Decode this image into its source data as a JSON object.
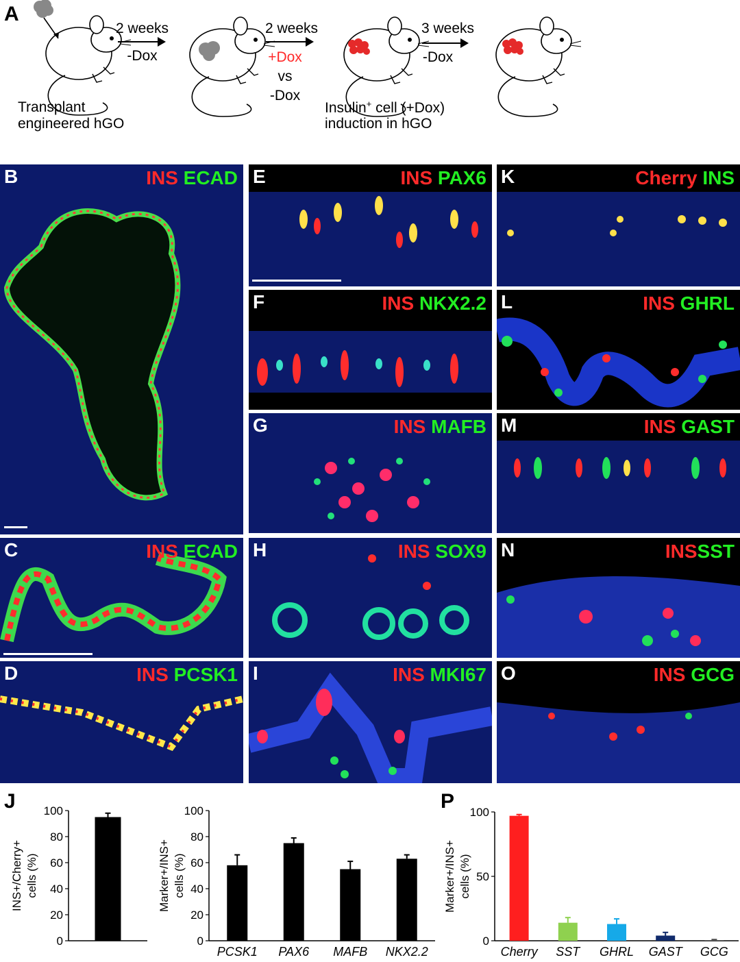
{
  "schematic": {
    "label": "A",
    "step1_time": "2 weeks",
    "step1_cond": "-Dox",
    "step2_time": "2 weeks",
    "step2_cond_plus": "+Dox",
    "step2_vs": "vs",
    "step2_cond_minus": "-Dox",
    "step3_time": "3 weeks",
    "step3_cond": "-Dox",
    "caption_left_1": "Transplant",
    "caption_left_2": "engineered hGO",
    "caption_mid_1": "Insulin",
    "caption_mid_sup": "+",
    "caption_mid_2": " cell (+Dox)",
    "caption_mid_3": "induction in hGO",
    "colors": {
      "dox_plus": "#ff2a2a",
      "clusters": "#e52a2a",
      "graft": "#888888"
    }
  },
  "panels": [
    {
      "id": "B",
      "red": "INS",
      "green": "ECAD"
    },
    {
      "id": "C",
      "red": "INS",
      "green": "ECAD"
    },
    {
      "id": "D",
      "red": "INS",
      "green": "PCSK1"
    },
    {
      "id": "E",
      "red": "INS",
      "green": "PAX6"
    },
    {
      "id": "F",
      "red": "INS",
      "green": "NKX2.2"
    },
    {
      "id": "G",
      "red": "INS",
      "green": "MAFB"
    },
    {
      "id": "H",
      "red": "INS",
      "green": "SOX9"
    },
    {
      "id": "I",
      "red": "INS",
      "green": "MKI67"
    },
    {
      "id": "K",
      "red": "Cherry",
      "green": "INS"
    },
    {
      "id": "L",
      "red": "INS",
      "green": "GHRL"
    },
    {
      "id": "M",
      "red": "INS",
      "green": "GAST"
    },
    {
      "id": "N",
      "red": "INS",
      "green": "SST"
    },
    {
      "id": "O",
      "red": "INS",
      "green": "GCG"
    }
  ],
  "labels": {
    "J": "J",
    "P": "P"
  },
  "chart_data": [
    {
      "type": "bar",
      "panel": "J-left",
      "categories": [
        ""
      ],
      "values": [
        95
      ],
      "errors": [
        3
      ],
      "ylabel_lines": [
        "INS+/Cherry+",
        "cells  (%)"
      ],
      "ylim": [
        0,
        100
      ],
      "yticks": [
        0,
        20,
        40,
        60,
        80,
        100
      ],
      "color": "#000000"
    },
    {
      "type": "bar",
      "panel": "J-right",
      "categories": [
        "PCSK1",
        "PAX6",
        "MAFB",
        "NKX2.2"
      ],
      "values": [
        58,
        75,
        55,
        63
      ],
      "errors": [
        8,
        4,
        6,
        3
      ],
      "ylabel_lines": [
        "Marker+/INS+",
        "cells (%)"
      ],
      "ylim": [
        0,
        100
      ],
      "yticks": [
        0,
        20,
        40,
        60,
        80,
        100
      ],
      "color": "#000000"
    },
    {
      "type": "bar",
      "panel": "P",
      "categories": [
        "Cherry",
        "SST",
        "GHRL",
        "GAST",
        "GCG"
      ],
      "values": [
        97,
        14,
        13,
        4,
        0.5
      ],
      "errors": [
        1,
        4,
        4,
        2.5,
        0.5
      ],
      "colors": [
        "#ff1f1f",
        "#8fd14f",
        "#16a9e8",
        "#102a6b",
        "#555555"
      ],
      "ylabel_lines": [
        "Marker+/INS+",
        "cells  (%)"
      ],
      "ylim": [
        0,
        100
      ],
      "yticks": [
        0,
        50,
        100
      ]
    }
  ]
}
